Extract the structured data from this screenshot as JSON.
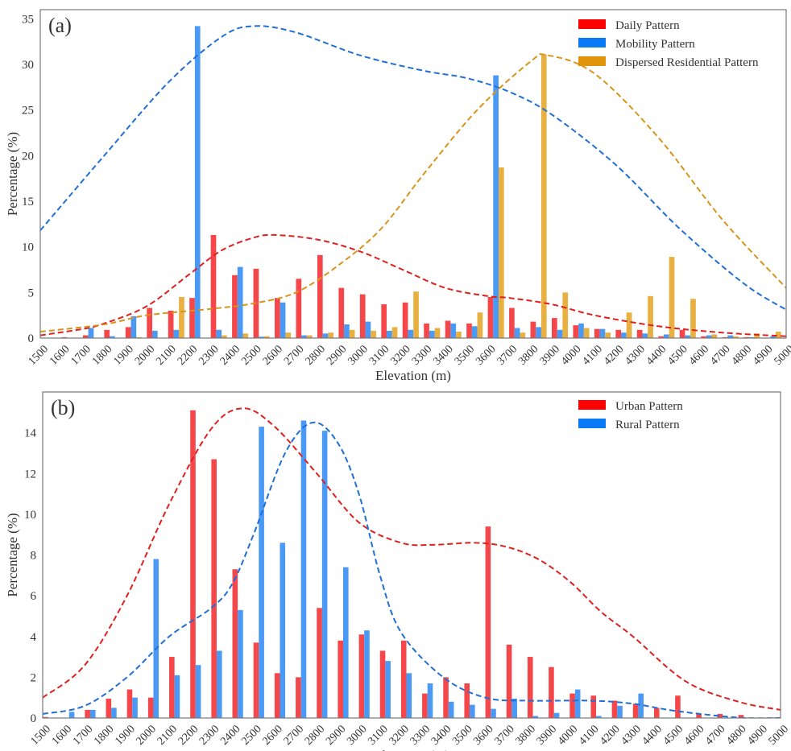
{
  "chart_data": [
    {
      "type": "bar",
      "panel_label": "(a)",
      "xlabel": "Elevation (m)",
      "ylabel": "Percentage (%)",
      "xlim": [
        1500,
        5000
      ],
      "ylim": [
        0,
        36
      ],
      "x_ticks": [
        "1500",
        "1600",
        "1700",
        "1800",
        "1900",
        "2000",
        "2100",
        "2200",
        "2300",
        "2400",
        "2500",
        "2600",
        "2700",
        "2800",
        "2900",
        "3000",
        "3100",
        "3200",
        "3300",
        "3400",
        "3500",
        "3600",
        "3700",
        "3800",
        "3900",
        "4000",
        "4100",
        "4200",
        "4300",
        "4400",
        "4500",
        "4600",
        "4700",
        "4800",
        "4900",
        "5000"
      ],
      "y_ticks": [
        0,
        5,
        10,
        15,
        20,
        25,
        30,
        35
      ],
      "grid": false,
      "legend_position": "top-right",
      "bins_start": [
        1500,
        1600,
        1700,
        1800,
        1900,
        2000,
        2100,
        2200,
        2300,
        2400,
        2500,
        2600,
        2700,
        2800,
        2900,
        3000,
        3100,
        3200,
        3300,
        3400,
        3500,
        3600,
        3700,
        3800,
        3900,
        4000,
        4100,
        4200,
        4300,
        4400,
        4500,
        4600,
        4700,
        4800,
        4900
      ],
      "series": [
        {
          "name": "Daily Pattern",
          "legend_color": "#ff0000",
          "bar_color": "#f5474a",
          "curve_color": "#e0201e",
          "values": [
            0,
            0.1,
            0.3,
            0.9,
            1.2,
            3.3,
            3.0,
            4.4,
            11.3,
            6.9,
            7.6,
            4.4,
            6.5,
            9.1,
            5.5,
            4.8,
            3.7,
            3.9,
            1.6,
            1.9,
            1.6,
            4.5,
            3.3,
            1.8,
            2.2,
            1.4,
            1.0,
            0.9,
            0.9,
            0.2,
            0.9,
            0.2,
            0.1,
            0.1,
            0.05
          ],
          "fit_curve": [
            [
              1500,
              0.3
            ],
            [
              1700,
              1.0
            ],
            [
              1800,
              1.6
            ],
            [
              2000,
              3.5
            ],
            [
              2200,
              7.0
            ],
            [
              2350,
              9.6
            ],
            [
              2500,
              11.0
            ],
            [
              2600,
              11.3
            ],
            [
              2800,
              10.8
            ],
            [
              3000,
              9.5
            ],
            [
              3200,
              7.5
            ],
            [
              3400,
              5.5
            ],
            [
              3600,
              4.6
            ],
            [
              3700,
              4.4
            ],
            [
              3900,
              3.7
            ],
            [
              4100,
              2.5
            ],
            [
              4400,
              1.3
            ],
            [
              4700,
              0.6
            ],
            [
              5000,
              0.2
            ]
          ]
        },
        {
          "name": "Mobility Pattern",
          "legend_color": "#0a79f5",
          "bar_color": "#4a9af5",
          "curve_color": "#1f6fd6",
          "values": [
            0,
            0,
            1.1,
            0.2,
            2.4,
            0.8,
            0.9,
            34.2,
            0.9,
            7.8,
            0.15,
            3.9,
            0.3,
            0.5,
            1.5,
            1.8,
            0.8,
            0.9,
            0.8,
            1.6,
            1.3,
            28.8,
            1.1,
            1.2,
            0.9,
            1.6,
            1.0,
            0.6,
            0.5,
            0.4,
            0.3,
            0.3,
            0.3,
            0.1,
            0.2
          ],
          "fit_curve": [
            [
              1500,
              11.8
            ],
            [
              1800,
              20.0
            ],
            [
              2100,
              28.0
            ],
            [
              2350,
              33.0
            ],
            [
              2500,
              34.2
            ],
            [
              2700,
              33.5
            ],
            [
              3000,
              31.0
            ],
            [
              3300,
              29.3
            ],
            [
              3500,
              28.5
            ],
            [
              3700,
              27.0
            ],
            [
              3900,
              24.5
            ],
            [
              4200,
              19.0
            ],
            [
              4500,
              12.0
            ],
            [
              4800,
              6.0
            ],
            [
              5000,
              3.1
            ]
          ]
        },
        {
          "name": "Dispersed Residential Pattern",
          "legend_color": "#e0940a",
          "bar_color": "#e8b040",
          "curve_color": "#d9941a",
          "values": [
            0,
            0.05,
            0,
            0,
            0.1,
            0,
            4.5,
            0.05,
            0.3,
            0.5,
            0.2,
            0.6,
            0.3,
            0.6,
            0.9,
            0.8,
            1.2,
            5.1,
            1.1,
            0.7,
            2.8,
            18.7,
            0.6,
            31.1,
            5.0,
            1.1,
            0.6,
            2.8,
            4.6,
            8.9,
            4.3,
            0.4,
            0.2,
            0.5,
            0.7
          ],
          "fit_curve": [
            [
              1500,
              0.7
            ],
            [
              1800,
              1.5
            ],
            [
              2000,
              2.5
            ],
            [
              2300,
              3.2
            ],
            [
              2500,
              3.8
            ],
            [
              2700,
              5.0
            ],
            [
              2900,
              8.0
            ],
            [
              3100,
              12.0
            ],
            [
              3300,
              18.0
            ],
            [
              3550,
              25.0
            ],
            [
              3800,
              30.3
            ],
            [
              3880,
              31.0
            ],
            [
              4100,
              29.0
            ],
            [
              4400,
              22.0
            ],
            [
              4700,
              13.0
            ],
            [
              5000,
              5.5
            ]
          ]
        }
      ]
    },
    {
      "type": "bar",
      "panel_label": "(b)",
      "xlabel": "Elevation (m)",
      "ylabel": "Percentage (%)",
      "xlim": [
        1500,
        5000
      ],
      "ylim": [
        0,
        16
      ],
      "x_ticks": [
        "1500",
        "1600",
        "1700",
        "1800",
        "1900",
        "2000",
        "2100",
        "2200",
        "2300",
        "2400",
        "2500",
        "2600",
        "2700",
        "2800",
        "2900",
        "3000",
        "3100",
        "3200",
        "3300",
        "3400",
        "3500",
        "3600",
        "3700",
        "3800",
        "3900",
        "4000",
        "4100",
        "4200",
        "4300",
        "4400",
        "4500",
        "4600",
        "4700",
        "4800",
        "4900",
        "5000"
      ],
      "y_ticks": [
        0,
        2,
        4,
        6,
        8,
        10,
        12,
        14
      ],
      "grid": false,
      "legend_position": "top-right",
      "bins_start": [
        1500,
        1600,
        1700,
        1800,
        1900,
        2000,
        2100,
        2200,
        2300,
        2400,
        2500,
        2600,
        2700,
        2800,
        2900,
        3000,
        3100,
        3200,
        3300,
        3400,
        3500,
        3600,
        3700,
        3800,
        3900,
        4000,
        4100,
        4200,
        4300,
        4400,
        4500,
        4600,
        4700,
        4800,
        4900
      ],
      "series": [
        {
          "name": "Urban Pattern",
          "legend_color": "#ff0000",
          "bar_color": "#f5474a",
          "curve_color": "#e0201e",
          "values": [
            0.05,
            0,
            0.4,
            0.95,
            1.4,
            1.0,
            3.0,
            15.1,
            12.7,
            7.3,
            3.7,
            2.2,
            2.0,
            5.4,
            3.8,
            4.1,
            3.3,
            3.8,
            1.2,
            2.0,
            1.7,
            9.4,
            3.6,
            3.0,
            2.5,
            1.2,
            1.1,
            0.85,
            0.7,
            0.5,
            1.1,
            0.2,
            0.2,
            0.15,
            0
          ],
          "fit_curve": [
            [
              1500,
              1.0
            ],
            [
              1700,
              2.6
            ],
            [
              1900,
              6.0
            ],
            [
              2100,
              10.5
            ],
            [
              2300,
              14.2
            ],
            [
              2450,
              15.2
            ],
            [
              2600,
              14.3
            ],
            [
              2800,
              12.0
            ],
            [
              3000,
              9.6
            ],
            [
              3200,
              8.6
            ],
            [
              3350,
              8.5
            ],
            [
              3550,
              8.6
            ],
            [
              3700,
              8.4
            ],
            [
              3850,
              7.8
            ],
            [
              4000,
              6.7
            ],
            [
              4150,
              5.2
            ],
            [
              4300,
              4.0
            ],
            [
              4550,
              1.8
            ],
            [
              4800,
              0.8
            ],
            [
              5000,
              0.4
            ]
          ]
        },
        {
          "name": "Rural Pattern",
          "legend_color": "#0a79f5",
          "bar_color": "#4a9af5",
          "curve_color": "#1f6fd6",
          "values": [
            0,
            0.3,
            0.4,
            0.5,
            1.0,
            7.8,
            2.1,
            2.6,
            3.3,
            5.3,
            14.3,
            8.6,
            14.6,
            14.1,
            7.4,
            4.3,
            2.8,
            2.2,
            1.7,
            0.8,
            0.65,
            0.45,
            0.95,
            0.1,
            0.25,
            1.4,
            0.1,
            0.6,
            1.2,
            0.02,
            0,
            0,
            0,
            0,
            0
          ],
          "fit_curve": [
            [
              1500,
              0.2
            ],
            [
              1700,
              0.6
            ],
            [
              1900,
              2.0
            ],
            [
              2100,
              4.0
            ],
            [
              2300,
              5.4
            ],
            [
              2400,
              6.6
            ],
            [
              2500,
              9.0
            ],
            [
              2650,
              13.0
            ],
            [
              2780,
              14.5
            ],
            [
              2900,
              13.5
            ],
            [
              3000,
              11.0
            ],
            [
              3100,
              7.0
            ],
            [
              3200,
              4.2
            ],
            [
              3400,
              2.0
            ],
            [
              3600,
              1.0
            ],
            [
              3800,
              0.85
            ],
            [
              4100,
              0.85
            ],
            [
              4300,
              0.7
            ],
            [
              4500,
              0.35
            ],
            [
              4800,
              0.02
            ],
            [
              5000,
              0
            ]
          ]
        }
      ]
    }
  ]
}
